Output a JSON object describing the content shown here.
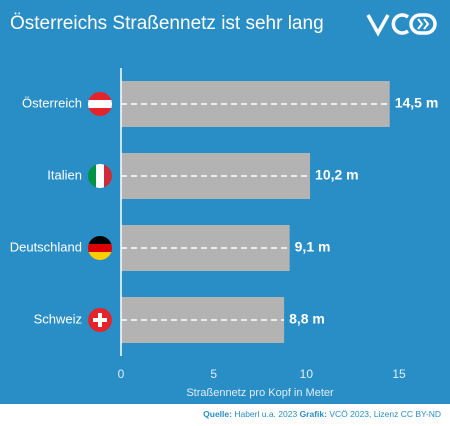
{
  "chart_data": {
    "type": "bar",
    "orientation": "horizontal",
    "title": "Österreichs Straßennetz ist sehr lang",
    "categories": [
      "Österreich",
      "Italien",
      "Deutschland",
      "Schweiz"
    ],
    "values": [
      14.5,
      10.2,
      9.1,
      8.8
    ],
    "value_labels": [
      "14,5 m",
      "10,2 m",
      "9,1 m",
      "8,8 m"
    ],
    "color": "#b3b3b3",
    "xlim": [
      0,
      15
    ],
    "xticks": [
      0,
      5,
      10,
      15
    ],
    "xlabel": "Straßennetz pro Kopf in Meter"
  },
  "footer": {
    "source_label": "Quelle:",
    "source": "Haberl u.a. 2023",
    "graphic_label": "Grafik:",
    "graphic": "VCÖ 2023, Lizenz CC BY-ND"
  }
}
